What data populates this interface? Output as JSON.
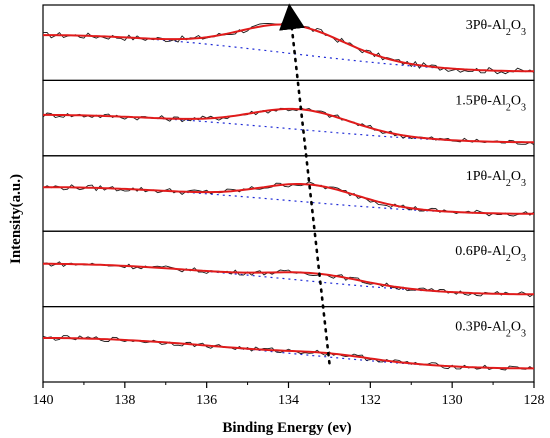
{
  "chart_data": {
    "type": "line",
    "xlabel": "Binding Energy (ev)",
    "ylabel": "Intensity(a.u.)",
    "xlim": [
      140,
      128
    ],
    "x_ticks": [
      140,
      138,
      136,
      134,
      132,
      130,
      128
    ],
    "x_tick_labels": [
      "140",
      "138",
      "136",
      "134",
      "132",
      "130",
      "128"
    ],
    "colors": {
      "raw": "#1a1a1a",
      "fit": "#e01b1b",
      "background": "#1f2bd6",
      "trend": "#000000"
    },
    "panels": [
      {
        "label_base": "3Pθ-Al",
        "label_sub1": "2",
        "label_mid": "O",
        "label_sub2": "3",
        "peak_center": 133.9,
        "y_start": 0.62,
        "y_end": 0.05,
        "peak_height": 0.45,
        "sigma": 1.25,
        "noise": 0.05
      },
      {
        "label_base": "1.5Pθ-Al",
        "label_sub1": "2",
        "label_mid": "O",
        "label_sub2": "3",
        "peak_center": 133.7,
        "y_start": 0.55,
        "y_end": 0.12,
        "peak_height": 0.32,
        "sigma": 1.2,
        "noise": 0.045
      },
      {
        "label_base": "1Pθ-Al",
        "label_sub1": "2",
        "label_mid": "O",
        "label_sub2": "3",
        "peak_center": 133.5,
        "y_start": 0.6,
        "y_end": 0.18,
        "peak_height": 0.28,
        "sigma": 1.15,
        "noise": 0.045
      },
      {
        "label_base": "0.6Pθ-Al",
        "label_sub1": "2",
        "label_mid": "O",
        "label_sub2": "3",
        "peak_center": 133.3,
        "y_start": 0.58,
        "y_end": 0.1,
        "peak_height": 0.13,
        "sigma": 1.1,
        "noise": 0.04
      },
      {
        "label_base": "0.3Pθ-Al",
        "label_sub1": "2",
        "label_mid": "O",
        "label_sub2": "3",
        "peak_center": 133.0,
        "y_start": 0.6,
        "y_end": 0.12,
        "peak_height": 0.06,
        "sigma": 1.0,
        "noise": 0.04
      }
    ],
    "trend_arrow": {
      "from_energy": 133.0,
      "to_energy": 133.95
    }
  }
}
